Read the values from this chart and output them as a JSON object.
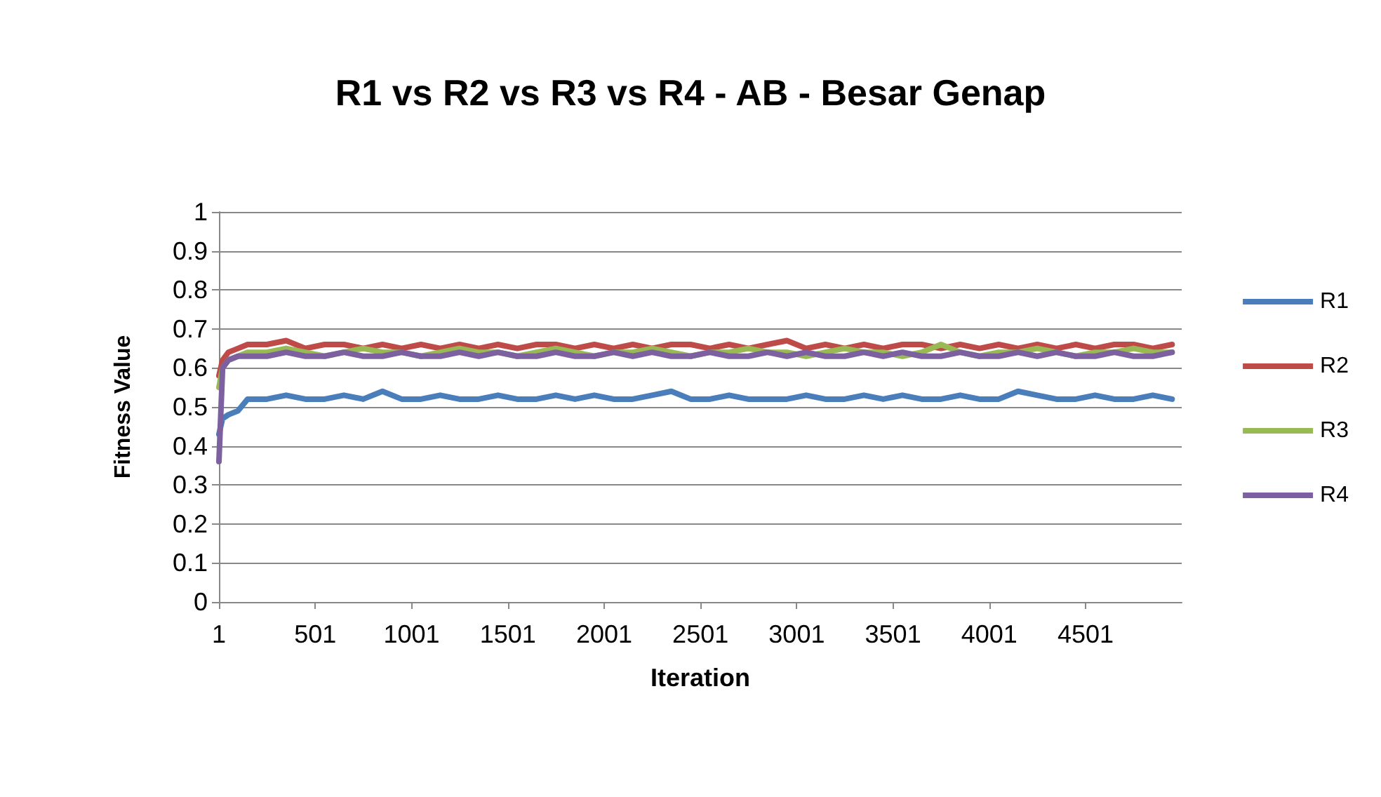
{
  "chart_data": {
    "type": "line",
    "title": "R1 vs R2 vs R3 vs R4 - AB - Besar Genap",
    "xlabel": "Iteration",
    "ylabel": "Fitness Value",
    "x": [
      1,
      20,
      50,
      100,
      150,
      250,
      350,
      450,
      550,
      650,
      750,
      850,
      950,
      1050,
      1150,
      1250,
      1350,
      1450,
      1550,
      1650,
      1750,
      1850,
      1950,
      2050,
      2150,
      2250,
      2350,
      2450,
      2550,
      2650,
      2750,
      2850,
      2950,
      3050,
      3150,
      3250,
      3350,
      3450,
      3550,
      3650,
      3750,
      3850,
      3950,
      4050,
      4150,
      4250,
      4350,
      4450,
      4550,
      4650,
      4750,
      4850,
      4950
    ],
    "xlim": [
      1,
      5000
    ],
    "xticks": [
      1,
      501,
      1001,
      1501,
      2001,
      2501,
      3001,
      3501,
      4001,
      4501
    ],
    "ylim": [
      0,
      1
    ],
    "yticks": [
      0,
      0.1,
      0.2,
      0.3,
      0.4,
      0.5,
      0.6,
      0.7,
      0.8,
      0.9,
      1
    ],
    "grid": "y",
    "legend": "right",
    "marker": "none",
    "line_style": "solid",
    "series": [
      {
        "name": "R1",
        "color": "#4a7ebb",
        "values": [
          0.43,
          0.47,
          0.48,
          0.49,
          0.52,
          0.52,
          0.53,
          0.52,
          0.52,
          0.53,
          0.52,
          0.54,
          0.52,
          0.52,
          0.53,
          0.52,
          0.52,
          0.53,
          0.52,
          0.52,
          0.53,
          0.52,
          0.53,
          0.52,
          0.52,
          0.53,
          0.54,
          0.52,
          0.52,
          0.53,
          0.52,
          0.52,
          0.52,
          0.53,
          0.52,
          0.52,
          0.53,
          0.52,
          0.53,
          0.52,
          0.52,
          0.53,
          0.52,
          0.52,
          0.54,
          0.53,
          0.52,
          0.52,
          0.53,
          0.52,
          0.52,
          0.53,
          0.52
        ]
      },
      {
        "name": "R2",
        "color": "#be4b48",
        "values": [
          0.58,
          0.62,
          0.64,
          0.65,
          0.66,
          0.66,
          0.67,
          0.65,
          0.66,
          0.66,
          0.65,
          0.66,
          0.65,
          0.66,
          0.65,
          0.66,
          0.65,
          0.66,
          0.65,
          0.66,
          0.66,
          0.65,
          0.66,
          0.65,
          0.66,
          0.65,
          0.66,
          0.66,
          0.65,
          0.66,
          0.65,
          0.66,
          0.67,
          0.65,
          0.66,
          0.65,
          0.66,
          0.65,
          0.66,
          0.66,
          0.65,
          0.66,
          0.65,
          0.66,
          0.65,
          0.66,
          0.65,
          0.66,
          0.65,
          0.66,
          0.66,
          0.65,
          0.66
        ]
      },
      {
        "name": "R3",
        "color": "#98b954",
        "values": [
          0.55,
          0.6,
          0.62,
          0.63,
          0.64,
          0.64,
          0.65,
          0.64,
          0.63,
          0.64,
          0.65,
          0.64,
          0.64,
          0.63,
          0.64,
          0.65,
          0.64,
          0.64,
          0.63,
          0.64,
          0.65,
          0.64,
          0.63,
          0.64,
          0.64,
          0.65,
          0.64,
          0.63,
          0.64,
          0.64,
          0.65,
          0.64,
          0.64,
          0.63,
          0.64,
          0.65,
          0.64,
          0.64,
          0.63,
          0.64,
          0.66,
          0.64,
          0.63,
          0.64,
          0.64,
          0.65,
          0.64,
          0.63,
          0.64,
          0.64,
          0.65,
          0.64,
          0.64
        ]
      },
      {
        "name": "R4",
        "color": "#7d60a0",
        "values": [
          0.36,
          0.6,
          0.62,
          0.63,
          0.63,
          0.63,
          0.64,
          0.63,
          0.63,
          0.64,
          0.63,
          0.63,
          0.64,
          0.63,
          0.63,
          0.64,
          0.63,
          0.64,
          0.63,
          0.63,
          0.64,
          0.63,
          0.63,
          0.64,
          0.63,
          0.64,
          0.63,
          0.63,
          0.64,
          0.63,
          0.63,
          0.64,
          0.63,
          0.64,
          0.63,
          0.63,
          0.64,
          0.63,
          0.64,
          0.63,
          0.63,
          0.64,
          0.63,
          0.63,
          0.64,
          0.63,
          0.64,
          0.63,
          0.63,
          0.64,
          0.63,
          0.63,
          0.64
        ]
      }
    ]
  }
}
